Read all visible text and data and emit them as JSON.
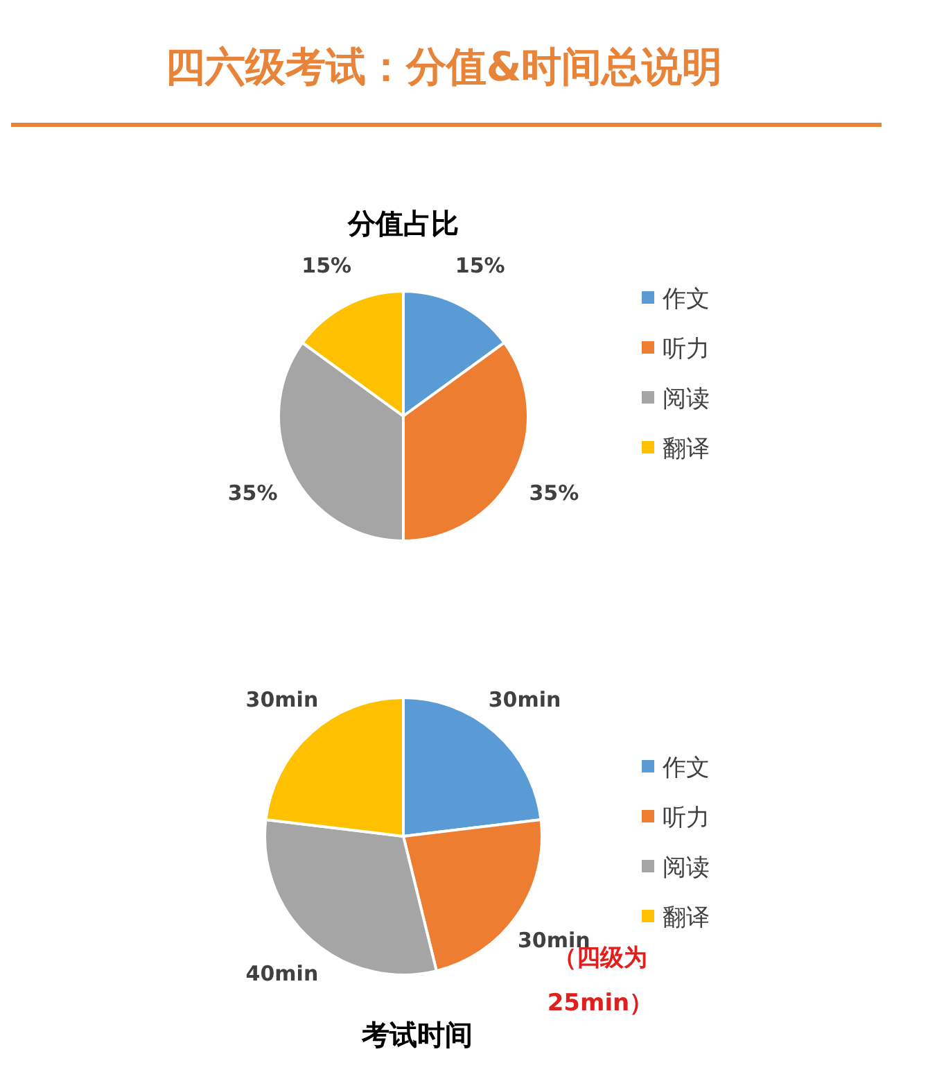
{
  "chart_data": [
    {
      "type": "other",
      "title": "四六级考试：分值&时间总说明"
    },
    {
      "type": "pie",
      "title": "分值占比",
      "categories": [
        "作文",
        "听力",
        "阅读",
        "翻译"
      ],
      "values": [
        15,
        35,
        35,
        15
      ],
      "colors": [
        "#5b9bd5",
        "#ed7d31",
        "#a5a5a5",
        "#ffc000"
      ],
      "value_labels": [
        "15%",
        "35%",
        "35%",
        "15%"
      ],
      "legend": "right"
    },
    {
      "type": "pie",
      "title": "考试时间",
      "categories": [
        "作文",
        "听力",
        "阅读",
        "翻译"
      ],
      "values": [
        30,
        30,
        40,
        30
      ],
      "colors": [
        "#5b9bd5",
        "#ed7d31",
        "#a5a5a5",
        "#ffc000"
      ],
      "value_labels": [
        "30min",
        "30min",
        "40min",
        "30min"
      ],
      "legend": "right",
      "annotations": [
        "（四级为25min）"
      ]
    }
  ]
}
